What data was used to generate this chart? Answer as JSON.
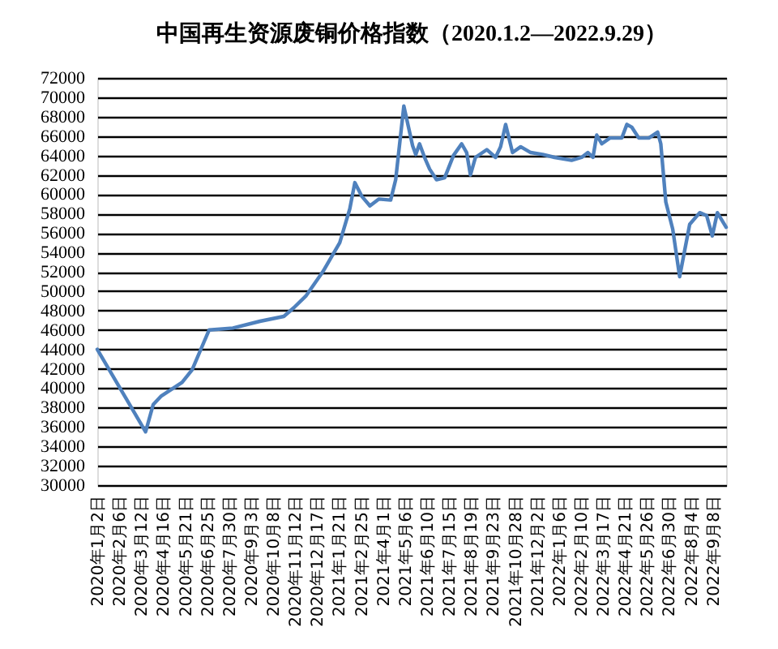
{
  "chart_data": {
    "type": "line",
    "title": "中国再生资源废铜价格指数（2020.1.2—2022.9.29）",
    "x": [
      "2020-01-02",
      "2020-03-19",
      "2020-03-31",
      "2020-04-13",
      "2020-05-16",
      "2020-06-01",
      "2020-06-28",
      "2020-08-05",
      "2020-09-17",
      "2020-10-25",
      "2020-11-10",
      "2020-11-29",
      "2020-12-26",
      "2021-01-22",
      "2021-02-07",
      "2021-02-15",
      "2021-02-26",
      "2021-03-11",
      "2021-03-25",
      "2021-04-13",
      "2021-04-21",
      "2021-05-04",
      "2021-05-18",
      "2021-05-23",
      "2021-05-29",
      "2021-06-06",
      "2021-06-14",
      "2021-06-25",
      "2021-07-08",
      "2021-07-22",
      "2021-08-04",
      "2021-08-12",
      "2021-08-18",
      "2021-08-26",
      "2021-09-13",
      "2021-09-27",
      "2021-10-05",
      "2021-10-13",
      "2021-10-24",
      "2021-11-06",
      "2021-11-22",
      "2021-12-11",
      "2021-12-30",
      "2022-01-26",
      "2022-02-11",
      "2022-02-21",
      "2022-03-01",
      "2022-03-07",
      "2022-03-15",
      "2022-03-28",
      "2022-04-16",
      "2022-04-24",
      "2022-05-02",
      "2022-05-13",
      "2022-05-29",
      "2022-06-12",
      "2022-06-17",
      "2022-06-25",
      "2022-07-06",
      "2022-07-17",
      "2022-08-02",
      "2022-08-18",
      "2022-08-29",
      "2022-09-07",
      "2022-09-15",
      "2022-09-29"
    ],
    "series": [
      {
        "color": "#4f81bd",
        "values": [
          44000,
          35500,
          38300,
          39200,
          40600,
          41900,
          46000,
          46200,
          46900,
          47400,
          48300,
          49500,
          52000,
          55000,
          58500,
          61200,
          59800,
          58800,
          59500,
          59400,
          61500,
          69100,
          65000,
          64100,
          65200,
          63800,
          62600,
          61500,
          61700,
          64000,
          65200,
          64300,
          62000,
          63800,
          64600,
          63800,
          64900,
          67200,
          64300,
          64900,
          64300,
          64100,
          63800,
          63500,
          63800,
          64300,
          63800,
          66100,
          65200,
          65800,
          65800,
          67200,
          66900,
          65800,
          65800,
          66400,
          65200,
          59200,
          56400,
          51500,
          56900,
          58100,
          57800,
          55700,
          58100,
          56600
        ]
      }
    ],
    "xlim": [
      "2020-01-02",
      "2022-09-29"
    ],
    "xticks": [
      {
        "value": "2020-01-02",
        "label": "2020年1月2日"
      },
      {
        "value": "2020-02-06",
        "label": "2020年2月6日"
      },
      {
        "value": "2020-03-12",
        "label": "2020年3月12日"
      },
      {
        "value": "2020-04-16",
        "label": "2020年4月16日"
      },
      {
        "value": "2020-05-21",
        "label": "2020年5月21日"
      },
      {
        "value": "2020-06-25",
        "label": "2020年6月25日"
      },
      {
        "value": "2020-07-30",
        "label": "2020年7月30日"
      },
      {
        "value": "2020-09-03",
        "label": "2020年9月3日"
      },
      {
        "value": "2020-10-08",
        "label": "2020年10月8日"
      },
      {
        "value": "2020-11-12",
        "label": "2020年11月12日"
      },
      {
        "value": "2020-12-17",
        "label": "2020年12月17日"
      },
      {
        "value": "2021-01-21",
        "label": "2021年1月21日"
      },
      {
        "value": "2021-02-25",
        "label": "2021年2月25日"
      },
      {
        "value": "2021-04-01",
        "label": "2021年4月1日"
      },
      {
        "value": "2021-05-06",
        "label": "2021年5月6日"
      },
      {
        "value": "2021-06-10",
        "label": "2021年6月10日"
      },
      {
        "value": "2021-07-15",
        "label": "2021年7月15日"
      },
      {
        "value": "2021-08-19",
        "label": "2021年8月19日"
      },
      {
        "value": "2021-09-23",
        "label": "2021年9月23日"
      },
      {
        "value": "2021-10-28",
        "label": "2021年10月28日"
      },
      {
        "value": "2021-12-02",
        "label": "2021年12月2日"
      },
      {
        "value": "2022-01-06",
        "label": "2022年1月6日"
      },
      {
        "value": "2022-02-10",
        "label": "2022年2月10日"
      },
      {
        "value": "2022-03-17",
        "label": "2022年3月17日"
      },
      {
        "value": "2022-04-21",
        "label": "2022年4月21日"
      },
      {
        "value": "2022-05-26",
        "label": "2022年5月26日"
      },
      {
        "value": "2022-06-30",
        "label": "2022年6月30日"
      },
      {
        "value": "2022-08-04",
        "label": "2022年8月4日"
      },
      {
        "value": "2022-09-08",
        "label": "2022年9月8日"
      }
    ],
    "ylim": [
      30000,
      72000
    ],
    "yticks": [
      30000,
      32000,
      34000,
      36000,
      38000,
      40000,
      42000,
      44000,
      46000,
      48000,
      50000,
      52000,
      54000,
      56000,
      58000,
      60000,
      62000,
      64000,
      66000,
      68000,
      70000,
      72000
    ],
    "grid": "y",
    "line_style": "solid"
  }
}
